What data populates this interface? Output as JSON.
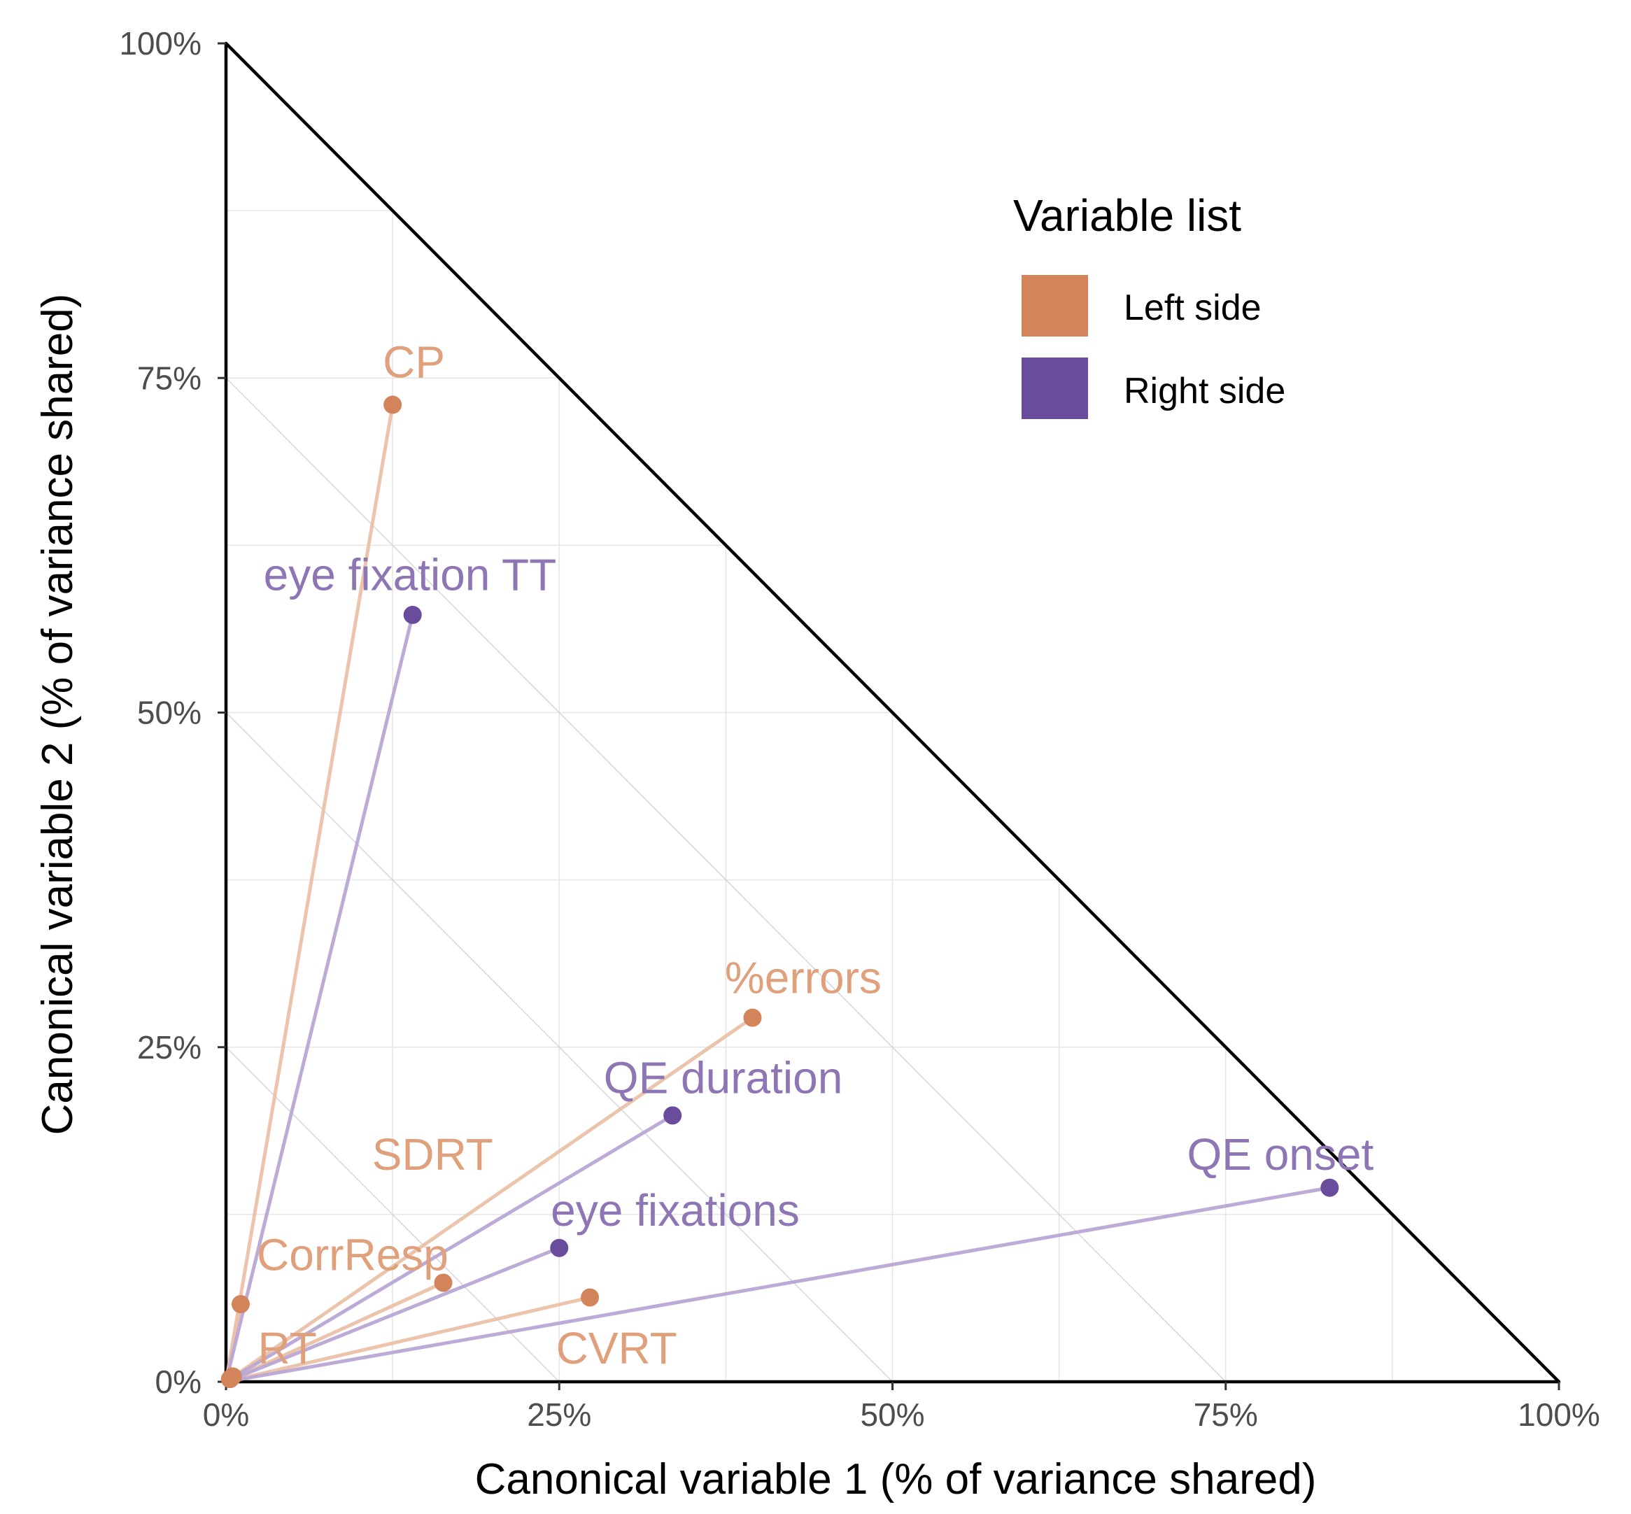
{
  "chart_data": {
    "type": "scatter",
    "xlabel": "Canonical variable 1 (% of variance shared)",
    "ylabel": "Canonical variable 2 (% of variance shared)",
    "xlim": [
      0,
      100
    ],
    "ylim": [
      0,
      100
    ],
    "x_ticks": [
      0,
      25,
      50,
      75,
      100
    ],
    "y_ticks": [
      0,
      25,
      50,
      75,
      100
    ],
    "x_tick_labels": [
      "0%",
      "25%",
      "50%",
      "75%",
      "100%"
    ],
    "y_tick_labels": [
      "0%",
      "25%",
      "50%",
      "75%",
      "100%"
    ],
    "minor_grid": [
      12.5,
      37.5,
      62.5,
      87.5
    ],
    "diagonal_guides": [
      25,
      50,
      75
    ],
    "boundary_line": "x + y = 100%",
    "legend": {
      "title": "Variable list",
      "position": "top-right",
      "entries": [
        {
          "name": "Left side",
          "color": "#D4845A"
        },
        {
          "name": "Right side",
          "color": "#6A4C9C"
        }
      ]
    },
    "series": [
      {
        "name": "Left side",
        "color": "#D4845A",
        "label_color": "#E0A07C",
        "segment_color": "#EBC0A6",
        "points": [
          {
            "label": "CP",
            "x": 12.5,
            "y": 73.0,
            "label_dx": 1.6,
            "label_dy": 3.2
          },
          {
            "label": "%errors",
            "x": 39.5,
            "y": 27.2,
            "label_dx": 3.8,
            "label_dy": 3.0
          },
          {
            "label": "SDRT",
            "x": 0.3,
            "y": 0.2,
            "label_dx": 0,
            "label_dy": 0,
            "label_x": 15.5,
            "label_y": 17.0
          },
          {
            "label": "CorrResp",
            "x": 16.3,
            "y": 7.4,
            "label_dx": -6.8,
            "label_dy": 2.1
          },
          {
            "label": "CVRT",
            "x": 27.3,
            "y": 6.3,
            "label_dx": 2.0,
            "label_dy": -3.8
          },
          {
            "label": "RT",
            "x": 1.1,
            "y": 5.8,
            "label_dx": 3.5,
            "label_dy": -3.3
          },
          {
            "label": "RT",
            "x": 0.5,
            "y": 0.4,
            "label_dx": 0,
            "label_dy": 0,
            "label_hidden": true
          }
        ]
      },
      {
        "name": "Right side",
        "color": "#6A4C9C",
        "label_color": "#8E76B5",
        "segment_color": "#B8A6D4",
        "points": [
          {
            "label": "eye fixation TT",
            "x": 14.0,
            "y": 57.3,
            "label_dx": -0.2,
            "label_dy": 3.0
          },
          {
            "label": "QE duration",
            "x": 33.5,
            "y": 19.9,
            "label_dx": 3.8,
            "label_dy": 2.8
          },
          {
            "label": "QE onset",
            "x": 82.8,
            "y": 14.5,
            "label_dx": -3.7,
            "label_dy": 2.5
          },
          {
            "label": "eye fixations",
            "x": 25.0,
            "y": 10.0,
            "label_dx": 8.7,
            "label_dy": 2.8
          }
        ]
      }
    ]
  }
}
